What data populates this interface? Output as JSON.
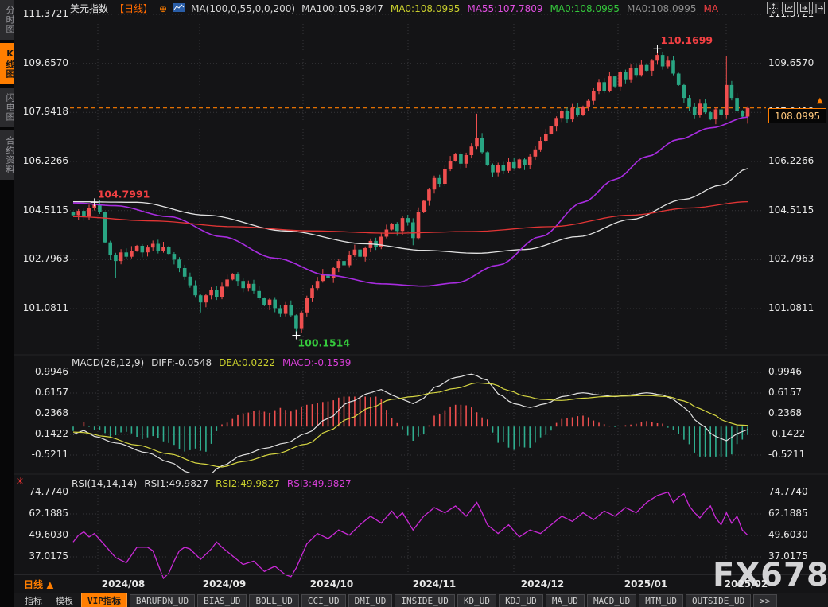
{
  "header": {
    "symbol": "美元指数",
    "period_tag": "【日线】",
    "plus_icon": "⊕",
    "ma_formula": "MA(100,0,55,0,0,200)",
    "ma_values": [
      {
        "text": "MA100:105.9847",
        "color": "#dcdcdc"
      },
      {
        "text": "MA0:108.0995",
        "color": "#c9cf2d"
      },
      {
        "text": "MA55:107.7809",
        "color": "#e24fe2"
      },
      {
        "text": "MA0:108.0995",
        "color": "#35c93c"
      },
      {
        "text": "MA0:108.0995",
        "color": "#8e8e8e"
      },
      {
        "text": "MA",
        "color": "#f34043"
      }
    ]
  },
  "toolbar_icons": [
    "pan-icon",
    "axis-zoom-icon",
    "axis-shift-icon",
    "collapse-panel-icon"
  ],
  "sidebar": {
    "items": [
      {
        "label": "分时图",
        "active": false
      },
      {
        "label": "K线图",
        "active": true
      },
      {
        "label": "闪电图",
        "active": false
      },
      {
        "label": "合约资料",
        "active": false
      }
    ]
  },
  "macd_header": {
    "formula": "MACD(26,12,9)",
    "diff": {
      "text": "DIFF:-0.0548",
      "color": "#dcdcdc"
    },
    "dea": {
      "text": "DEA:0.0222",
      "color": "#c9cf2d"
    },
    "macd": {
      "text": "MACD:-0.1539",
      "color": "#d73fd7"
    }
  },
  "rsi_header": {
    "formula": "RSI(14,14,14)",
    "rsi1": {
      "text": "RSI1:49.9827",
      "color": "#dcdcdc"
    },
    "rsi2": {
      "text": "RSI2:49.9827",
      "color": "#c9cf2d"
    },
    "rsi3": {
      "text": "RSI3:49.9827",
      "color": "#d73fd7"
    }
  },
  "price_marker": {
    "value": "108.0995"
  },
  "period_selector": {
    "label": "日线",
    "arrow": "▲"
  },
  "watermark": {
    "text": "FX678"
  },
  "axes": {
    "main_left": [
      "111.3721",
      "109.6570",
      "107.9418",
      "106.2266",
      "104.5115",
      "102.7963",
      "101.0811"
    ],
    "macd": [
      "0.9946",
      "0.6157",
      "0.2368",
      "-0.1422",
      "-0.5211"
    ],
    "rsi": [
      "74.7740",
      "62.1885",
      "49.6030",
      "37.0175"
    ],
    "dates": [
      "2024/08",
      "2024/09",
      "2024/10",
      "2024/11",
      "2024/12",
      "2025/01",
      "2025/02"
    ]
  },
  "bottom_tabs": [
    {
      "label": "指标",
      "type": "plain"
    },
    {
      "label": "模板",
      "type": "plain"
    },
    {
      "label": "VIP指标",
      "type": "active"
    },
    {
      "label": "BARUFDN_UD",
      "type": "chip"
    },
    {
      "label": "BIAS_UD",
      "type": "chip"
    },
    {
      "label": "BOLL_UD",
      "type": "chip"
    },
    {
      "label": "CCI_UD",
      "type": "chip"
    },
    {
      "label": "DMI_UD",
      "type": "chip"
    },
    {
      "label": "INSIDE_UD",
      "type": "chip"
    },
    {
      "label": "KD_UD",
      "type": "chip"
    },
    {
      "label": "KDJ_UD",
      "type": "chip"
    },
    {
      "label": "MA_UD",
      "type": "chip"
    },
    {
      "label": "MACD_UD",
      "type": "chip"
    },
    {
      "label": "MTM_UD",
      "type": "chip"
    },
    {
      "label": "OUTSIDE_UD",
      "type": "chip"
    },
    {
      "label": ">>",
      "type": "chip"
    }
  ],
  "chart_data": [
    {
      "type": "candlestick",
      "title": "美元指数 日线",
      "ylabels": [
        111.3721,
        109.657,
        107.9418,
        106.2266,
        104.5115,
        102.7963,
        101.0811
      ],
      "ylim": [
        99.6,
        111.88
      ],
      "grid": true,
      "up_color": "#ef4f4f",
      "down_color": "#29a583",
      "current_price": 108.0995,
      "current_price_line_color": "#ff7e00",
      "first_open": 104.45,
      "closes": [
        104.35,
        104.5,
        104.3,
        104.6,
        104.72,
        104.45,
        103.4,
        102.95,
        102.75,
        103.05,
        102.9,
        103.1,
        103.28,
        103.05,
        103.22,
        103.35,
        103.1,
        103.25,
        103.0,
        102.8,
        102.5,
        102.2,
        101.9,
        101.55,
        101.3,
        101.55,
        101.75,
        101.5,
        101.85,
        102.1,
        102.3,
        102.05,
        101.8,
        101.95,
        101.7,
        101.45,
        101.2,
        101.4,
        101.1,
        100.9,
        101.2,
        100.85,
        100.4,
        100.95,
        101.45,
        101.8,
        102.05,
        102.3,
        102.15,
        102.5,
        102.75,
        102.6,
        102.95,
        103.15,
        102.9,
        103.2,
        103.45,
        103.25,
        103.6,
        103.85,
        104.05,
        103.8,
        104.25,
        104.1,
        103.55,
        104.45,
        104.85,
        105.25,
        105.65,
        105.45,
        105.95,
        106.25,
        106.5,
        106.15,
        106.45,
        106.75,
        107.05,
        106.55,
        106.1,
        105.85,
        106.1,
        105.9,
        106.2,
        106.0,
        106.3,
        106.1,
        106.4,
        106.65,
        106.95,
        107.2,
        107.45,
        107.75,
        108.0,
        107.7,
        108.1,
        107.85,
        108.15,
        108.35,
        108.7,
        109.0,
        108.7,
        109.2,
        108.85,
        109.35,
        109.1,
        109.5,
        109.25,
        109.6,
        109.4,
        109.75,
        109.95,
        109.55,
        109.75,
        109.3,
        108.9,
        108.45,
        108.15,
        107.85,
        108.25,
        107.95,
        107.7,
        108.05,
        107.85,
        108.9,
        108.45,
        108.0,
        107.8,
        108.1
      ],
      "wick_overrides": {
        "4": {
          "h": 104.7991
        },
        "8": {
          "l": 102.15
        },
        "24": {
          "l": 100.95
        },
        "42": {
          "l": 100.1514
        },
        "64": {
          "l": 103.3
        },
        "76": {
          "h": 107.9
        },
        "110": {
          "h": 110.1699
        },
        "123": {
          "h": 109.9
        },
        "127": {
          "l": 107.55
        }
      },
      "annotations": [
        {
          "label": "104.7991",
          "day": 4,
          "price": 104.7991,
          "color": "#f34043",
          "pos": "above"
        },
        {
          "label": "110.1699",
          "day": 110,
          "price": 110.1699,
          "color": "#f34043",
          "pos": "above"
        },
        {
          "label": "100.1514",
          "day": 42,
          "price": 100.1514,
          "color": "#35c93c",
          "pos": "below"
        }
      ],
      "ma_lines": [
        {
          "name": "MA100",
          "color": "#e2e2e2",
          "points": [
            [
              0,
              104.82
            ],
            [
              12,
              104.8
            ],
            [
              25,
              104.35
            ],
            [
              40,
              103.8
            ],
            [
              55,
              103.35
            ],
            [
              66,
              103.12
            ],
            [
              76,
              103.02
            ],
            [
              85,
              103.15
            ],
            [
              95,
              103.6
            ],
            [
              105,
              104.2
            ],
            [
              115,
              104.9
            ],
            [
              122,
              105.4
            ],
            [
              127,
              105.98
            ]
          ]
        },
        {
          "name": "MA55",
          "color": "#a82ce0",
          "points": [
            [
              0,
              104.78
            ],
            [
              8,
              104.68
            ],
            [
              18,
              104.3
            ],
            [
              28,
              103.6
            ],
            [
              38,
              102.85
            ],
            [
              48,
              102.25
            ],
            [
              58,
              101.95
            ],
            [
              66,
              101.87
            ],
            [
              72,
              101.98
            ],
            [
              80,
              102.6
            ],
            [
              88,
              103.6
            ],
            [
              96,
              104.8
            ],
            [
              102,
              105.6
            ],
            [
              108,
              106.4
            ],
            [
              114,
              107.0
            ],
            [
              120,
              107.4
            ],
            [
              127,
              107.78
            ]
          ]
        },
        {
          "name": "MA200",
          "color": "#e23535",
          "points": [
            [
              0,
              104.3
            ],
            [
              15,
              104.15
            ],
            [
              30,
              103.95
            ],
            [
              45,
              103.8
            ],
            [
              60,
              103.72
            ],
            [
              75,
              103.78
            ],
            [
              90,
              103.95
            ],
            [
              105,
              104.35
            ],
            [
              116,
              104.6
            ],
            [
              127,
              104.82
            ]
          ]
        }
      ]
    },
    {
      "type": "macd",
      "params": "(26,12,9)",
      "values": {
        "diff": -0.0548,
        "dea": 0.0222,
        "macd": -0.1539
      },
      "ylabels": [
        0.9946,
        0.6157,
        0.2368,
        -0.1422,
        -0.5211
      ],
      "hist_rule": "2*(DIF-DEA)",
      "up_color": "#ef4f4f",
      "down_color": "#2fae8f",
      "dif_color": "#e2e2e2",
      "dea_color": "#d6d642",
      "dif_points": [
        [
          0,
          -0.14
        ],
        [
          2,
          -0.07
        ],
        [
          4,
          -0.18
        ],
        [
          8,
          -0.3
        ],
        [
          14,
          -0.48
        ],
        [
          18,
          -0.65
        ],
        [
          22,
          -0.85
        ],
        [
          25,
          -0.92
        ],
        [
          28,
          -0.72
        ],
        [
          32,
          -0.52
        ],
        [
          36,
          -0.4
        ],
        [
          40,
          -0.3
        ],
        [
          44,
          -0.12
        ],
        [
          48,
          0.15
        ],
        [
          52,
          0.45
        ],
        [
          56,
          0.62
        ],
        [
          58,
          0.68
        ],
        [
          60,
          0.58
        ],
        [
          62,
          0.5
        ],
        [
          64,
          0.42
        ],
        [
          66,
          0.52
        ],
        [
          68,
          0.72
        ],
        [
          72,
          0.9
        ],
        [
          75,
          0.96
        ],
        [
          78,
          0.85
        ],
        [
          80,
          0.6
        ],
        [
          83,
          0.42
        ],
        [
          86,
          0.35
        ],
        [
          89,
          0.42
        ],
        [
          92,
          0.55
        ],
        [
          96,
          0.62
        ],
        [
          99,
          0.58
        ],
        [
          102,
          0.55
        ],
        [
          105,
          0.58
        ],
        [
          108,
          0.62
        ],
        [
          111,
          0.58
        ],
        [
          113,
          0.5
        ],
        [
          115,
          0.35
        ],
        [
          118,
          0.05
        ],
        [
          121,
          -0.18
        ],
        [
          123,
          -0.26
        ],
        [
          125,
          -0.13
        ],
        [
          127,
          -0.055
        ]
      ],
      "dea_points": [
        [
          0,
          -0.1
        ],
        [
          2,
          -0.11
        ],
        [
          6,
          -0.18
        ],
        [
          12,
          -0.34
        ],
        [
          18,
          -0.5
        ],
        [
          24,
          -0.68
        ],
        [
          28,
          -0.74
        ],
        [
          32,
          -0.64
        ],
        [
          38,
          -0.5
        ],
        [
          44,
          -0.32
        ],
        [
          48,
          -0.08
        ],
        [
          52,
          0.15
        ],
        [
          56,
          0.35
        ],
        [
          60,
          0.5
        ],
        [
          64,
          0.55
        ],
        [
          68,
          0.62
        ],
        [
          72,
          0.7
        ],
        [
          76,
          0.8
        ],
        [
          79,
          0.78
        ],
        [
          82,
          0.66
        ],
        [
          85,
          0.56
        ],
        [
          88,
          0.5
        ],
        [
          92,
          0.48
        ],
        [
          96,
          0.52
        ],
        [
          100,
          0.55
        ],
        [
          104,
          0.56
        ],
        [
          108,
          0.57
        ],
        [
          112,
          0.55
        ],
        [
          115,
          0.47
        ],
        [
          118,
          0.33
        ],
        [
          120,
          0.24
        ],
        [
          123,
          0.09
        ],
        [
          125,
          0.03
        ],
        [
          127,
          0.022
        ]
      ]
    },
    {
      "type": "line",
      "name": "RSI",
      "params": "(14,14,14)",
      "values": {
        "rsi1": 49.9827,
        "rsi2": 49.9827,
        "rsi3": 49.9827
      },
      "ylabels": [
        74.774,
        62.1885,
        49.603,
        37.0175
      ],
      "color": "#c929d6",
      "points": [
        [
          0,
          46
        ],
        [
          1,
          50
        ],
        [
          2,
          52
        ],
        [
          3,
          49
        ],
        [
          4,
          51
        ],
        [
          6,
          44
        ],
        [
          8,
          37
        ],
        [
          10,
          34
        ],
        [
          12,
          43
        ],
        [
          14,
          43
        ],
        [
          15,
          41
        ],
        [
          16,
          33
        ],
        [
          17,
          25
        ],
        [
          18,
          28
        ],
        [
          19,
          35
        ],
        [
          20,
          41
        ],
        [
          21,
          43
        ],
        [
          22,
          42
        ],
        [
          24,
          36
        ],
        [
          26,
          42
        ],
        [
          27,
          46
        ],
        [
          28,
          43
        ],
        [
          30,
          38
        ],
        [
          32,
          33
        ],
        [
          34,
          35
        ],
        [
          36,
          29
        ],
        [
          38,
          32
        ],
        [
          40,
          27
        ],
        [
          41,
          26
        ],
        [
          42,
          31
        ],
        [
          44,
          45
        ],
        [
          46,
          51
        ],
        [
          48,
          48
        ],
        [
          50,
          53
        ],
        [
          52,
          50
        ],
        [
          54,
          56
        ],
        [
          56,
          61
        ],
        [
          58,
          57
        ],
        [
          60,
          64
        ],
        [
          61,
          60
        ],
        [
          62,
          63
        ],
        [
          63,
          58
        ],
        [
          64,
          53
        ],
        [
          66,
          61
        ],
        [
          68,
          66
        ],
        [
          70,
          63
        ],
        [
          72,
          67
        ],
        [
          74,
          61
        ],
        [
          76,
          69
        ],
        [
          77,
          63
        ],
        [
          78,
          56
        ],
        [
          80,
          51
        ],
        [
          82,
          56
        ],
        [
          84,
          49
        ],
        [
          86,
          53
        ],
        [
          88,
          51
        ],
        [
          90,
          56
        ],
        [
          92,
          61
        ],
        [
          94,
          58
        ],
        [
          96,
          63
        ],
        [
          98,
          59
        ],
        [
          100,
          64
        ],
        [
          102,
          61
        ],
        [
          104,
          66
        ],
        [
          106,
          63
        ],
        [
          108,
          69
        ],
        [
          110,
          73
        ],
        [
          112,
          75
        ],
        [
          113,
          69
        ],
        [
          114,
          72
        ],
        [
          115,
          74
        ],
        [
          116,
          67
        ],
        [
          117,
          63
        ],
        [
          118,
          60
        ],
        [
          119,
          64
        ],
        [
          120,
          67
        ],
        [
          121,
          60
        ],
        [
          122,
          56
        ],
        [
          123,
          63
        ],
        [
          124,
          57
        ],
        [
          125,
          61
        ],
        [
          126,
          53
        ],
        [
          127,
          50
        ]
      ]
    }
  ]
}
